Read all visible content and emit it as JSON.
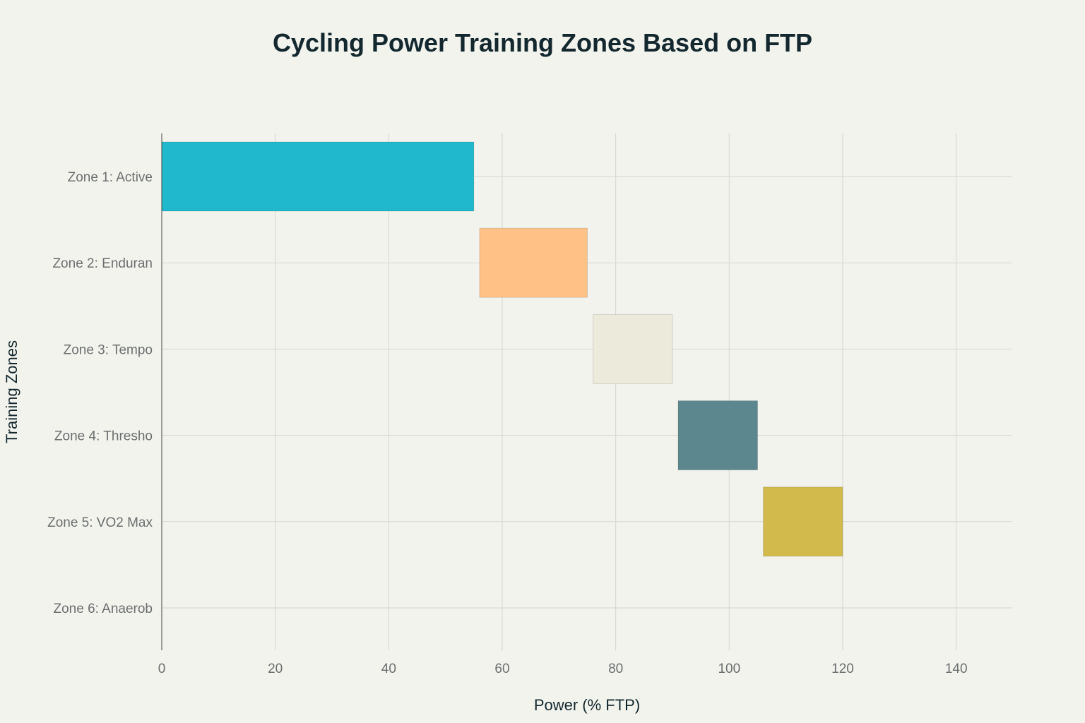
{
  "chart_data": {
    "type": "bar",
    "orientation": "horizontal",
    "title": "Cycling Power Training Zones Based on FTP",
    "xlabel": "Power (% FTP)",
    "ylabel": "Training Zones",
    "categories": [
      "Zone 1: Active",
      "Zone 2: Enduran",
      "Zone 3: Tempo",
      "Zone 4: Thresho",
      "Zone 5: VO2 Max",
      "Zone 6: Anaerob"
    ],
    "ranges": [
      {
        "start": 0,
        "end": 55,
        "color": "#1fb8cd"
      },
      {
        "start": 56,
        "end": 75,
        "color": "#ffc185"
      },
      {
        "start": 76,
        "end": 90,
        "color": "#eceadb"
      },
      {
        "start": 91,
        "end": 105,
        "color": "#5d878f"
      },
      {
        "start": 106,
        "end": 120,
        "color": "#d2ba4c"
      },
      {
        "start": null,
        "end": null,
        "color": "#b4413c"
      }
    ],
    "xlim": [
      0,
      150
    ],
    "xticks": [
      0,
      20,
      40,
      60,
      80,
      100,
      120,
      140
    ],
    "grid": true,
    "legend": "none"
  }
}
